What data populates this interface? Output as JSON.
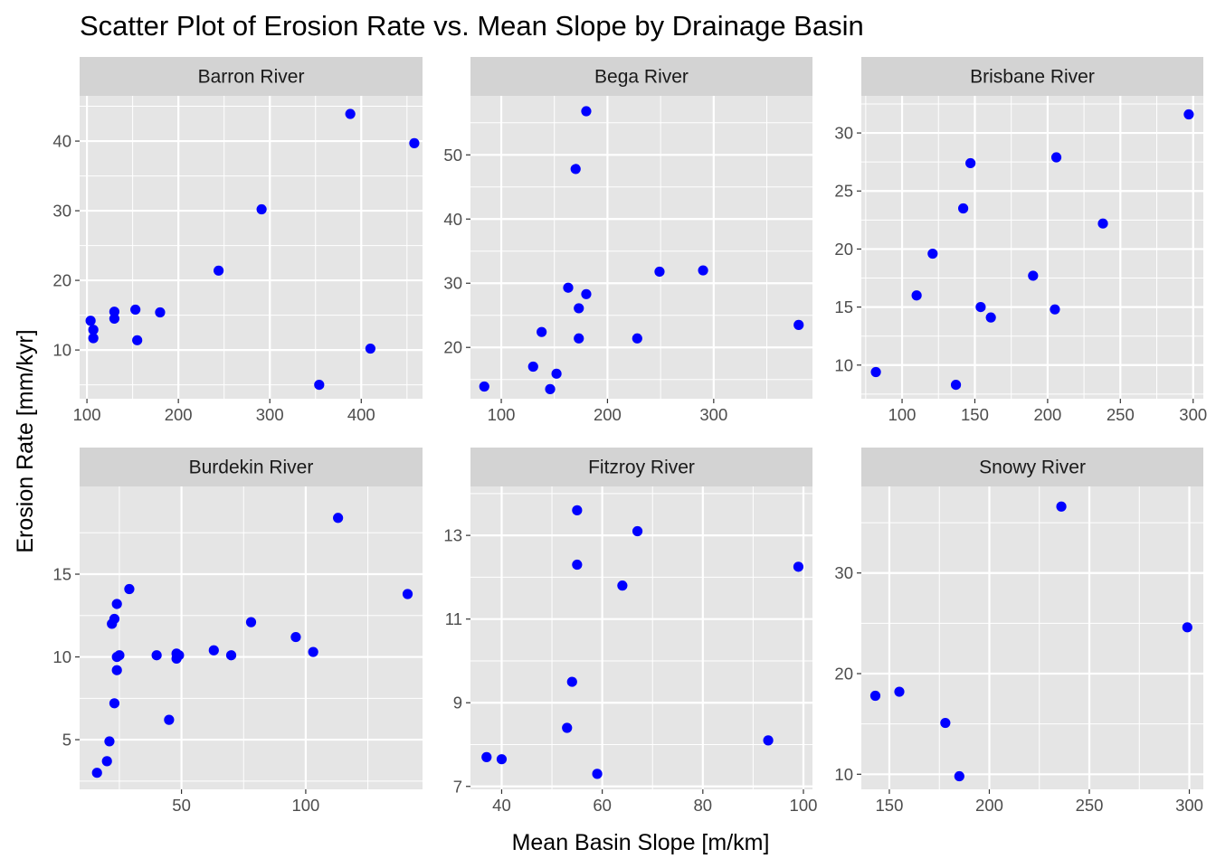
{
  "chart_data": {
    "type": "scatter",
    "title": "Scatter Plot of Erosion Rate vs. Mean Slope by Drainage Basin",
    "xlabel": "Mean Basin Slope [m/km]",
    "ylabel": "Erosion Rate [mm/kyr]",
    "point_color": "#0000FF",
    "panel_background": "#E5E5E5",
    "strip_background": "#D3D3D3",
    "grid": true,
    "facets": [
      {
        "name": "Barron River",
        "xlim": [
          92,
          467
        ],
        "ylim": [
          3,
          46.5
        ],
        "xticks": [
          100,
          200,
          300,
          400
        ],
        "xticklabels": [
          "100",
          "200",
          "300",
          "400"
        ],
        "yticks": [
          10,
          20,
          30,
          40
        ],
        "yticklabels": [
          "10",
          "20",
          "30",
          "40"
        ],
        "x": [
          104,
          107,
          107,
          130,
          130,
          153,
          155,
          180,
          244,
          291,
          354,
          388,
          410,
          458
        ],
        "y": [
          14.2,
          12.9,
          11.7,
          15.5,
          14.5,
          15.8,
          11.4,
          15.4,
          21.4,
          30.2,
          5.0,
          43.9,
          10.2,
          39.7
        ]
      },
      {
        "name": "Bega River",
        "xlim": [
          71,
          393
        ],
        "ylim": [
          12.0,
          59.2
        ],
        "xticks": [
          100,
          200,
          300
        ],
        "xticklabels": [
          "100",
          "200",
          "300"
        ],
        "yticks": [
          20,
          30,
          40,
          50
        ],
        "yticklabels": [
          "20",
          "30",
          "40",
          "50"
        ],
        "x": [
          84,
          130,
          138,
          146,
          152,
          163,
          170,
          173,
          173,
          180,
          180,
          228,
          249,
          290,
          380
        ],
        "y": [
          13.9,
          17.0,
          22.4,
          13.5,
          15.9,
          29.3,
          47.8,
          26.1,
          21.4,
          28.3,
          56.8,
          21.4,
          31.8,
          32.0,
          23.5
        ]
      },
      {
        "name": "Brisbane River",
        "xlim": [
          72,
          307
        ],
        "ylim": [
          7.1,
          33.2
        ],
        "xticks": [
          100,
          150,
          200,
          250,
          300
        ],
        "xticklabels": [
          "100",
          "150",
          "200",
          "250",
          "300"
        ],
        "yticks": [
          10,
          15,
          20,
          25,
          30
        ],
        "yticklabels": [
          "10",
          "15",
          "20",
          "25",
          "30"
        ],
        "x": [
          82,
          110,
          121,
          137,
          142,
          147,
          154,
          161,
          190,
          205,
          206,
          238,
          297
        ],
        "y": [
          9.4,
          16.0,
          19.6,
          8.3,
          23.5,
          27.4,
          15.0,
          14.1,
          17.7,
          14.8,
          27.9,
          22.2,
          31.6
        ]
      },
      {
        "name": "Burdekin River",
        "xlim": [
          9,
          147
        ],
        "ylim": [
          2.0,
          20.3
        ],
        "xticks": [
          50,
          100
        ],
        "xticklabels": [
          "50",
          "100"
        ],
        "yticks": [
          5,
          10,
          15
        ],
        "yticklabels": [
          "5",
          "10",
          "15"
        ],
        "x": [
          16,
          20,
          21,
          22,
          23,
          23,
          24,
          24,
          24,
          25,
          29,
          40,
          45,
          48,
          48,
          49,
          63,
          70,
          78,
          96,
          103,
          113,
          141
        ],
        "y": [
          3.0,
          3.7,
          4.9,
          12.0,
          7.2,
          12.3,
          10.0,
          13.2,
          9.2,
          10.1,
          14.1,
          10.1,
          6.2,
          9.9,
          10.2,
          10.1,
          10.4,
          10.1,
          12.1,
          11.2,
          10.3,
          18.4,
          13.8
        ]
      },
      {
        "name": "Fitzroy River",
        "xlim": [
          33.8,
          101.8
        ],
        "ylim": [
          6.93,
          14.17
        ],
        "xticks": [
          40,
          60,
          80,
          100
        ],
        "xticklabels": [
          "40",
          "60",
          "80",
          "100"
        ],
        "yticks": [
          7,
          9,
          11,
          13
        ],
        "yticklabels": [
          "7",
          "9",
          "11",
          "13"
        ],
        "x": [
          37,
          40,
          53,
          54,
          55,
          55,
          59,
          64,
          67,
          93,
          99
        ],
        "y": [
          7.7,
          7.65,
          8.4,
          9.5,
          13.6,
          12.3,
          7.3,
          11.8,
          13.1,
          8.1,
          12.25
        ]
      },
      {
        "name": "Snowy River",
        "xlim": [
          136,
          307
        ],
        "ylim": [
          8.5,
          38.6
        ],
        "xticks": [
          150,
          200,
          250,
          300
        ],
        "xticklabels": [
          "150",
          "200",
          "250",
          "300"
        ],
        "yticks": [
          10,
          20,
          30
        ],
        "yticklabels": [
          "10",
          "20",
          "30"
        ],
        "x": [
          143,
          155,
          178,
          185,
          236,
          299
        ],
        "y": [
          17.8,
          18.2,
          15.1,
          9.8,
          36.6,
          24.6
        ]
      }
    ]
  }
}
